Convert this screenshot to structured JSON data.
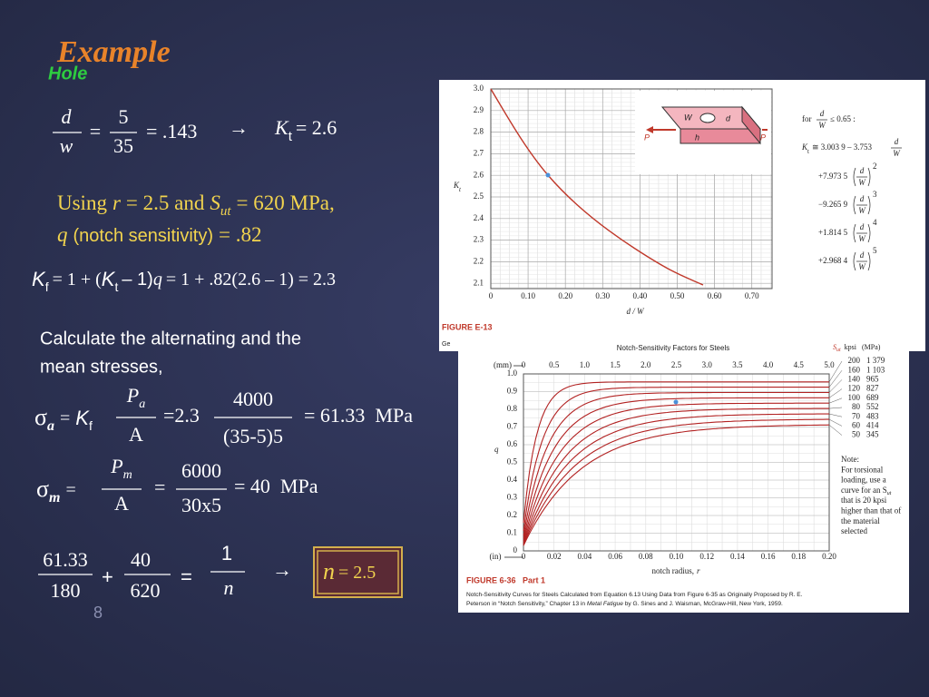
{
  "title": "Example",
  "subtitle": "Hole",
  "ratio": {
    "d": "d",
    "w": "w",
    "eq": "=",
    "num": "5",
    "den": "35",
    "result": "= .143",
    "arrow": "→",
    "k": "K",
    "k_sub": "t",
    "k_val": "= 2.6"
  },
  "using": {
    "prefix": "Using",
    "r": "r",
    "mid": "= 2.5 and",
    "s": "S",
    "s_sub": "ut",
    "end": "= 620 MPa,"
  },
  "q_line": {
    "q": "q",
    "text": "(notch sensitivity)",
    "val": "= .82"
  },
  "kf": {
    "k": "K",
    "k_sub": "f",
    "a": "= 1 + (",
    "k2": "K",
    "k2_sub": "t",
    "b": "– 1)",
    "q": "q",
    "c": "= 1 + .82(2.6 – 1) = 2.3"
  },
  "instruction": [
    "Calculate the alternating and the",
    "mean stresses,"
  ],
  "sigma_a": {
    "s": "σ",
    "sub": "a",
    "eq": "=",
    "k": "K",
    "k_sub": "f",
    "p": "P",
    "p_sub": "a",
    "a": "A",
    "eq2": "=2.3",
    "num": "4000",
    "den": "(35-5)5",
    "result": "= 61.33  MPa"
  },
  "sigma_m": {
    "s": "σ",
    "sub": "m",
    "eq": "=",
    "p": "P",
    "p_sub": "m",
    "a": "A",
    "eq2": "=",
    "num": "6000",
    "den": "30x5",
    "result": "= 40  MPa"
  },
  "goodman": {
    "n1": "61.33",
    "d1": "180",
    "plus": "+",
    "n2": "40",
    "d2": "620",
    "eq": "=",
    "n3": "1",
    "d3": "n",
    "arrow": "→",
    "answer_n": "n",
    "answer": "= 2.5"
  },
  "page_number": "8",
  "figure_e13": {
    "y_label": "K",
    "y_label_sub": "t",
    "yticks": [
      "3.0",
      "2.9",
      "2.8",
      "2.7",
      "2.6",
      "2.5",
      "2.4",
      "2.3",
      "2.2",
      "2.1"
    ],
    "xticks": [
      "0",
      "0.10",
      "0.20",
      "0.30",
      "0.40",
      "0.50",
      "0.60",
      "0.70"
    ],
    "x_label": "d / W",
    "diagram": {
      "w": "W",
      "d": "d",
      "p_left": "P",
      "p_right": "P",
      "h": "h"
    },
    "formula": {
      "for": "for",
      "frac_num": "d",
      "frac_den": "W",
      "cond": "≤ 0.65 :",
      "k": "K",
      "k_sub": "t",
      "first": "≅ 3.003 9 – 3.753",
      "terms": [
        {
          "coef": "+7.973 5",
          "exp": "2"
        },
        {
          "coef": "−9.265 9",
          "exp": "3"
        },
        {
          "coef": "+1.814 5",
          "exp": "4"
        },
        {
          "coef": "+2.968 4",
          "exp": "5"
        }
      ]
    },
    "caption": "FIGURE E-13",
    "caption_text": "Ge"
  },
  "figure_6_36": {
    "title": "Notch-Sensitivity Factors for Steels",
    "sut": "S",
    "sut_sub": "ut",
    "units": "kpsi   (MPa)",
    "rows": [
      [
        "200",
        "1 379"
      ],
      [
        "160",
        "1 103"
      ],
      [
        "140",
        "965"
      ],
      [
        "120",
        "827"
      ],
      [
        "100",
        "689"
      ],
      [
        "80",
        "552"
      ],
      [
        "70",
        "483"
      ],
      [
        "60",
        "414"
      ],
      [
        "50",
        "345"
      ]
    ],
    "mm_label": "(mm)",
    "top_ticks": [
      "0",
      "0.5",
      "1.0",
      "1.5",
      "2.0",
      "2.5",
      "3.0",
      "3.5",
      "4.0",
      "4.5",
      "5.0"
    ],
    "yticks": [
      "0",
      "0.1",
      "0.2",
      "0.3",
      "0.4",
      "0.5",
      "0.6",
      "0.7",
      "0.8",
      "0.9",
      "1.0"
    ],
    "y_label": "q",
    "in_label": "(in)",
    "xticks": [
      "0",
      "0.02",
      "0.04",
      "0.06",
      "0.08",
      "0.10",
      "0.12",
      "0.14",
      "0.16",
      "0.18",
      "0.20"
    ],
    "x_label": "notch radius,",
    "x_label_var": "r",
    "notes": [
      "Note:",
      "For torsional",
      "loading, use a",
      "curve for an S",
      "that is 20 kpsi",
      "higher than that of",
      "the material",
      "selected"
    ],
    "note_sub": "ut",
    "caption": "FIGURE 6-36   Part 1",
    "caption_line1": "Notch-Sensitivity Curves for Steels Calculated from Equation 6.13 Using Data from Figure 6-35 as Originally Proposed by R. E.",
    "caption_line2": [
      "Peterson in “Notch Sensitivity,” Chapter 13 in ",
      "Metal Fatigue",
      " by G. Sines and J. Waisman, McGraw-Hill, New York, 1959."
    ]
  }
}
